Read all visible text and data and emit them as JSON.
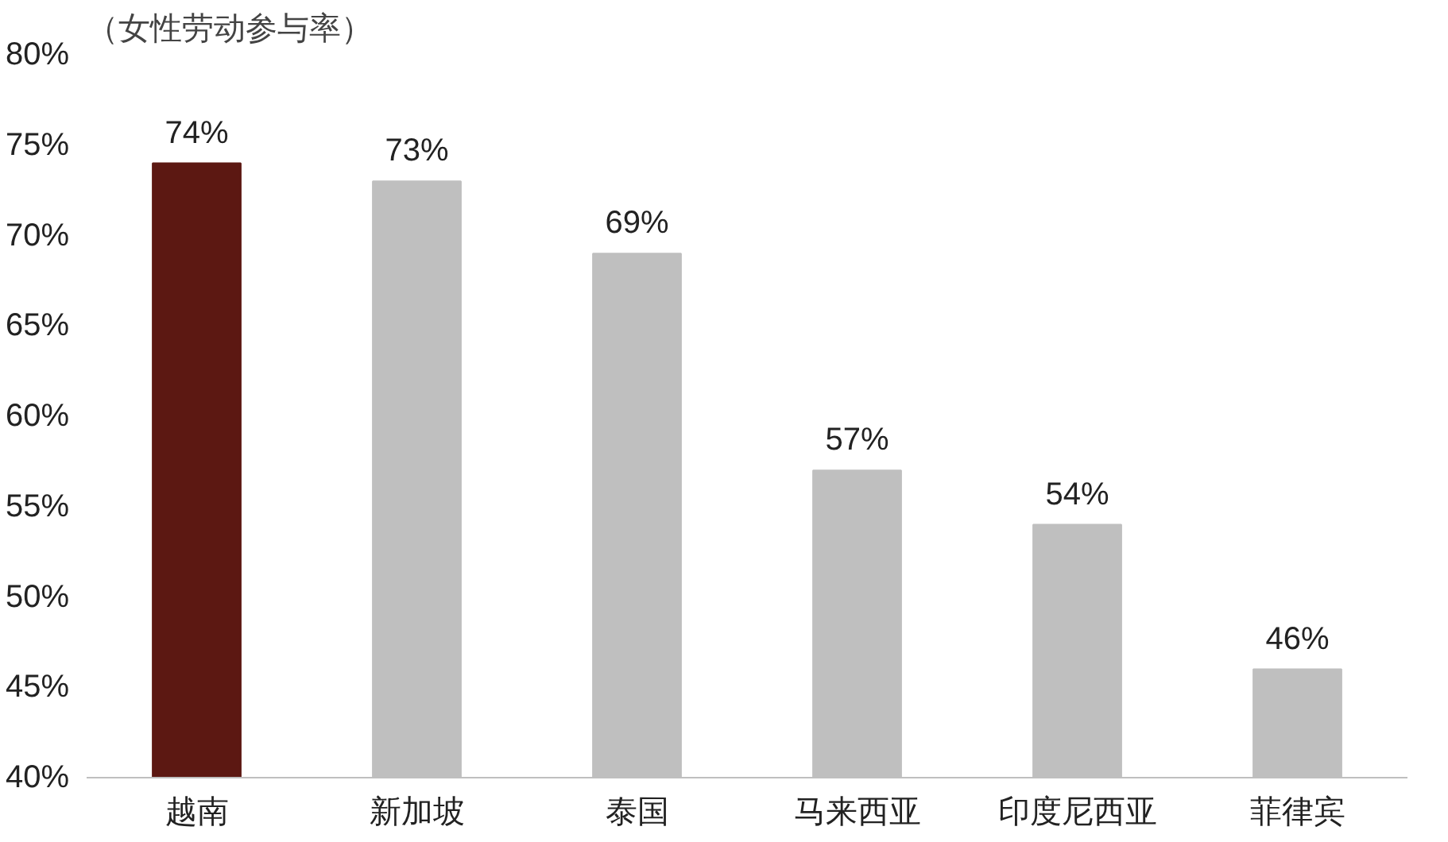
{
  "chart_data": {
    "type": "bar",
    "ylabel": "（女性劳动参与率）",
    "categories": [
      "越南",
      "新加坡",
      "泰国",
      "马来西亚",
      "印度尼西亚",
      "菲律宾"
    ],
    "values": [
      74,
      73,
      69,
      57,
      54,
      46
    ],
    "colors": [
      "#5c1812",
      "#bfbfbf",
      "#bfbfbf",
      "#bfbfbf",
      "#bfbfbf",
      "#bfbfbf"
    ],
    "value_labels": [
      "74%",
      "73%",
      "69%",
      "57%",
      "54%",
      "46%"
    ],
    "ylim": [
      40,
      80
    ],
    "yticks": [
      {
        "value": 40,
        "label": "40%"
      },
      {
        "value": 45,
        "label": "45%"
      },
      {
        "value": 50,
        "label": "50%"
      },
      {
        "value": 55,
        "label": "55%"
      },
      {
        "value": 60,
        "label": "60%"
      },
      {
        "value": 65,
        "label": "65%"
      },
      {
        "value": 70,
        "label": "70%"
      },
      {
        "value": 75,
        "label": "75%"
      },
      {
        "value": 80,
        "label": "80%"
      }
    ],
    "grid": false
  }
}
